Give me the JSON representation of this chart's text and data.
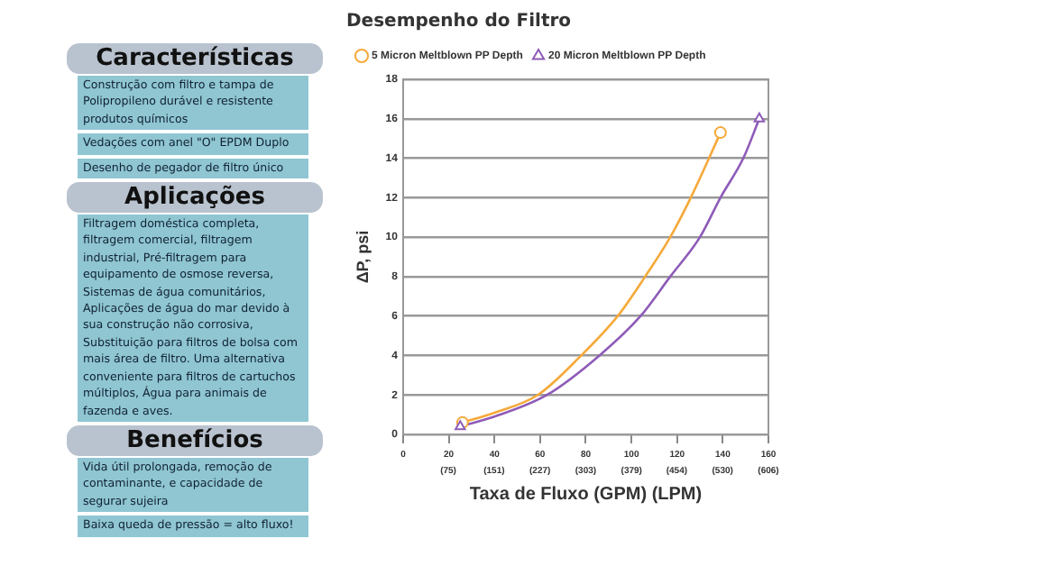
{
  "chart_data": {
    "type": "line",
    "title": "Desempenho do Filtro",
    "xlabel": "Taxa de Fluxo (GPM) (LPM)",
    "ylabel": "ΔP, psi",
    "series": [
      {
        "color": "#f5a93a",
        "marker": "none",
        "x": [
          26,
          40,
          59,
          78,
          94,
          106,
          117,
          126,
          134,
          139
        ],
        "values": [
          0.6,
          1.1,
          2,
          4,
          6,
          8,
          10,
          12,
          14,
          15.3
        ]
      },
      {
        "color": "#8e5bb8",
        "marker": "none",
        "x": [
          25,
          40,
          63,
          86,
          104,
          117,
          130,
          139,
          149,
          156
        ],
        "values": [
          0.4,
          0.9,
          2,
          4,
          6,
          8,
          10,
          12,
          14,
          16
        ]
      },
      {
        "type": "scatter",
        "name": "5 Micron Meltblown PP Depth",
        "color": "#f5a93a",
        "marker": "circle",
        "x": [
          26,
          139
        ],
        "values": [
          0.6,
          15.3
        ]
      },
      {
        "type": "scatter",
        "name": "20 Micron Meltblown PP Depth",
        "color": "#8e5bb8",
        "marker": "triangle",
        "x": [
          25,
          156
        ],
        "values": [
          0.4,
          16
        ]
      }
    ],
    "xlim": [
      0,
      160
    ],
    "xticks": [
      0,
      20,
      40,
      60,
      80,
      100,
      120,
      140,
      160
    ],
    "x2lim": [
      0,
      606
    ],
    "x2ticks": [
      {
        "value": 75,
        "label": "(75)"
      },
      {
        "value": 151,
        "label": "(151)"
      },
      {
        "value": 227,
        "label": "(227)"
      },
      {
        "value": 303,
        "label": "(303)"
      },
      {
        "value": 379,
        "label": "(379)"
      },
      {
        "value": 454,
        "label": "(454)"
      },
      {
        "value": 530,
        "label": "(530)"
      },
      {
        "value": 606,
        "label": "(606)"
      }
    ],
    "ylim": [
      0,
      18
    ],
    "yticks": [
      0,
      2,
      4,
      6,
      8,
      10,
      12,
      14,
      16,
      18
    ],
    "grid": "y",
    "legend": "top",
    "line_style": "solid",
    "annotations": [
      "Características",
      "Construção com filtro e tampa de Polipropileno durável e resistente produtos químicos",
      "Vedações com anel \"O\" EPDM Duplo",
      "Desenho de pegador de filtro único",
      "Aplicações",
      "Filtragem doméstica completa, filtragem comercial, filtragem industrial, Pré-filtragem para equipamento de osmose reversa, Sistemas de água comunitários, Aplicações de água do mar devido à sua construção não corrosiva, Substituição para filtros de bolsa com mais área de filtro. Uma alternativa conveniente para filtros de cartuchos múltiplos, Água para animais de fazenda e aves.",
      "Benefícios",
      "Vida útil prolongada, remoção de contaminante, e capacidade de segurar sujeira",
      "Baixa queda de pressão = alto fluxo!"
    ]
  }
}
